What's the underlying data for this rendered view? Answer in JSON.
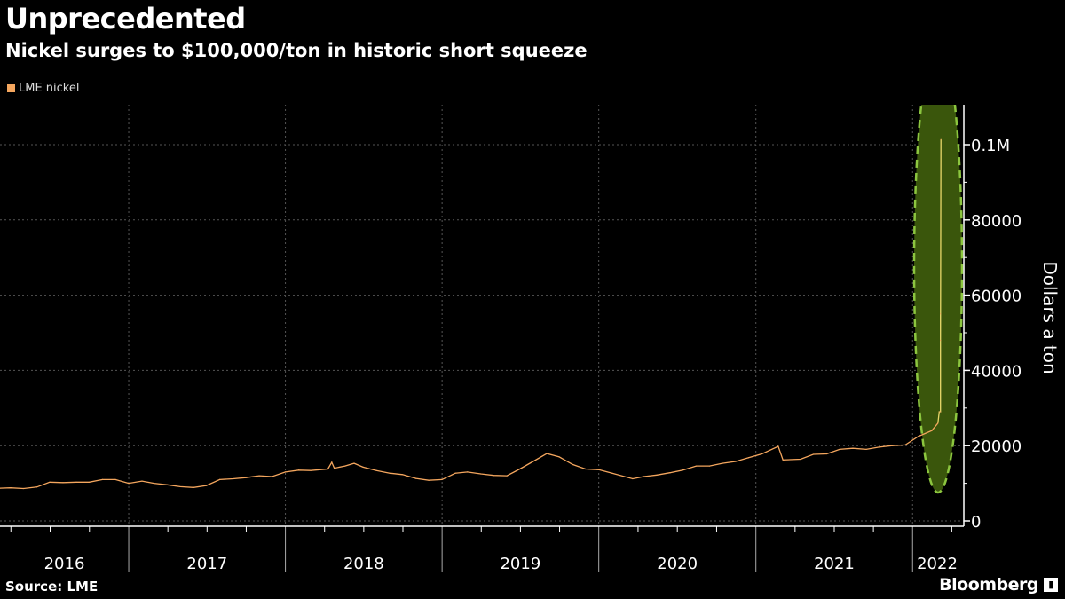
{
  "header": {
    "title": "Unprecedented",
    "subtitle": "Nickel surges to $100,000/ton in historic short squeeze"
  },
  "footer": {
    "source": "Source: LME",
    "logo": "Bloomberg"
  },
  "colors": {
    "background": "#000000",
    "line": "#f4a65e",
    "spike": "#e8d86a",
    "highlight_fill": "#3a560c",
    "highlight_stroke": "#8cc63f",
    "grid": "#555555"
  },
  "chart_data": {
    "type": "line",
    "title": "Unprecedented",
    "subtitle": "Nickel surges to $100,000/ton in historic short squeeze",
    "xlabel": "",
    "ylabel": "Dollars a ton",
    "ylim": [
      0,
      110000
    ],
    "y_ticks": [
      0,
      20000,
      40000,
      60000,
      80000,
      100000
    ],
    "y_tick_labels": [
      "0",
      "20000",
      "40000",
      "60000",
      "80000",
      "0.1M"
    ],
    "x_tick_labels": [
      "2016",
      "2017",
      "2018",
      "2019",
      "2020",
      "2021",
      "2022"
    ],
    "xlim": [
      "2016-03-07",
      "2022-04-30"
    ],
    "grid": true,
    "legend_position": "top-left",
    "y_axis_position": "right",
    "annotation": "green dashed ellipse highlighting March 2022 spike",
    "series": [
      {
        "name": "LME nickel",
        "points": [
          [
            "2016-03-07",
            8700
          ],
          [
            "2016-04-01",
            8800
          ],
          [
            "2016-05-01",
            8600
          ],
          [
            "2016-06-01",
            9000
          ],
          [
            "2016-07-01",
            10300
          ],
          [
            "2016-08-01",
            10200
          ],
          [
            "2016-09-01",
            10300
          ],
          [
            "2016-10-01",
            10300
          ],
          [
            "2016-11-01",
            11000
          ],
          [
            "2016-12-01",
            11000
          ],
          [
            "2017-01-01",
            10000
          ],
          [
            "2017-02-01",
            10600
          ],
          [
            "2017-03-01",
            10000
          ],
          [
            "2017-04-01",
            9600
          ],
          [
            "2017-05-01",
            9100
          ],
          [
            "2017-06-01",
            8900
          ],
          [
            "2017-07-01",
            9400
          ],
          [
            "2017-08-01",
            11000
          ],
          [
            "2017-09-01",
            11200
          ],
          [
            "2017-10-01",
            11500
          ],
          [
            "2017-11-01",
            12000
          ],
          [
            "2017-12-01",
            11800
          ],
          [
            "2018-01-01",
            13000
          ],
          [
            "2018-02-01",
            13500
          ],
          [
            "2018-03-01",
            13400
          ],
          [
            "2018-04-10",
            13800
          ],
          [
            "2018-04-19",
            15600
          ],
          [
            "2018-04-25",
            14000
          ],
          [
            "2018-05-20",
            14600
          ],
          [
            "2018-06-10",
            15300
          ],
          [
            "2018-07-01",
            14300
          ],
          [
            "2018-08-01",
            13400
          ],
          [
            "2018-09-01",
            12700
          ],
          [
            "2018-10-01",
            12300
          ],
          [
            "2018-11-01",
            11300
          ],
          [
            "2018-12-01",
            10800
          ],
          [
            "2019-01-01",
            11000
          ],
          [
            "2019-02-01",
            12700
          ],
          [
            "2019-03-01",
            13000
          ],
          [
            "2019-04-01",
            12500
          ],
          [
            "2019-05-01",
            12100
          ],
          [
            "2019-06-01",
            12000
          ],
          [
            "2019-07-01",
            13800
          ],
          [
            "2019-08-01",
            15800
          ],
          [
            "2019-09-02",
            17900
          ],
          [
            "2019-10-01",
            17000
          ],
          [
            "2019-11-01",
            15000
          ],
          [
            "2019-12-01",
            13800
          ],
          [
            "2020-01-01",
            13600
          ],
          [
            "2020-02-01",
            12700
          ],
          [
            "2020-03-20",
            11200
          ],
          [
            "2020-04-15",
            11800
          ],
          [
            "2020-05-15",
            12200
          ],
          [
            "2020-06-15",
            12800
          ],
          [
            "2020-07-15",
            13500
          ],
          [
            "2020-08-15",
            14600
          ],
          [
            "2020-09-15",
            14600
          ],
          [
            "2020-10-15",
            15300
          ],
          [
            "2020-11-15",
            15800
          ],
          [
            "2020-12-15",
            16800
          ],
          [
            "2021-01-15",
            17800
          ],
          [
            "2021-02-22",
            19800
          ],
          [
            "2021-03-05",
            16200
          ],
          [
            "2021-04-15",
            16400
          ],
          [
            "2021-05-15",
            17700
          ],
          [
            "2021-06-15",
            17800
          ],
          [
            "2021-07-15",
            19000
          ],
          [
            "2021-08-15",
            19300
          ],
          [
            "2021-09-15",
            19000
          ],
          [
            "2021-10-15",
            19600
          ],
          [
            "2021-11-15",
            20000
          ],
          [
            "2021-12-15",
            20200
          ],
          [
            "2022-01-15",
            22500
          ],
          [
            "2022-02-15",
            24000
          ],
          [
            "2022-03-01",
            26000
          ],
          [
            "2022-03-04",
            29000
          ],
          [
            "2022-03-07",
            29000
          ],
          [
            "2022-03-07",
            55000
          ],
          [
            "2022-03-07",
            48000
          ],
          [
            "2022-03-08",
            101365
          ]
        ]
      }
    ]
  }
}
